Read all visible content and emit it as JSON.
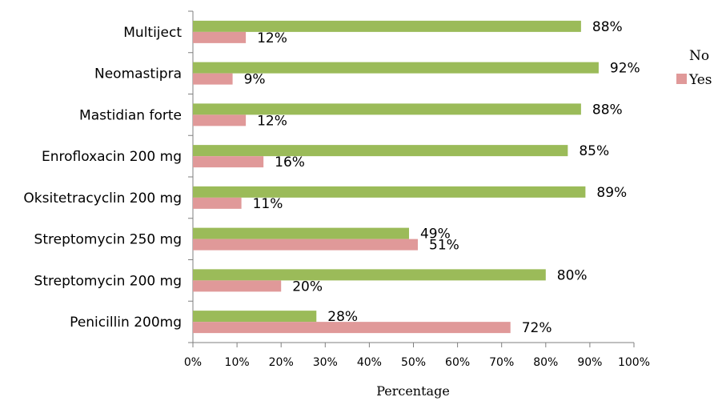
{
  "chart_data": {
    "type": "bar",
    "orientation": "horizontal",
    "categories": [
      "Multiject",
      "Neomastipra",
      "Mastidian forte",
      "Enrofloxacin 200 mg",
      "Oksitetracyclin 200 mg",
      "Streptomycin 250 mg",
      "Streptomycin 200 mg",
      "Penicillin 200mg"
    ],
    "series": [
      {
        "name": "No",
        "color": "#9bbb59",
        "values": [
          88,
          92,
          88,
          85,
          89,
          49,
          80,
          28
        ],
        "labels": [
          "88%",
          "92%",
          "88%",
          "85%",
          "89%",
          "49%",
          "80%",
          "28%"
        ]
      },
      {
        "name": "Yes",
        "color": "#e09999",
        "values": [
          12,
          9,
          12,
          16,
          11,
          51,
          20,
          72
        ],
        "labels": [
          "12%",
          "9%",
          "12%",
          "16%",
          "11%",
          "51%",
          "20%",
          "72%"
        ]
      }
    ],
    "xlabel": "Percentage",
    "ylabel": "",
    "xlim": [
      0,
      100
    ],
    "xticks": [
      "0%",
      "10%",
      "20%",
      "30%",
      "40%",
      "50%",
      "60%",
      "70%",
      "80%",
      "90%",
      "100%"
    ],
    "grid": false,
    "legend_position": "right"
  }
}
